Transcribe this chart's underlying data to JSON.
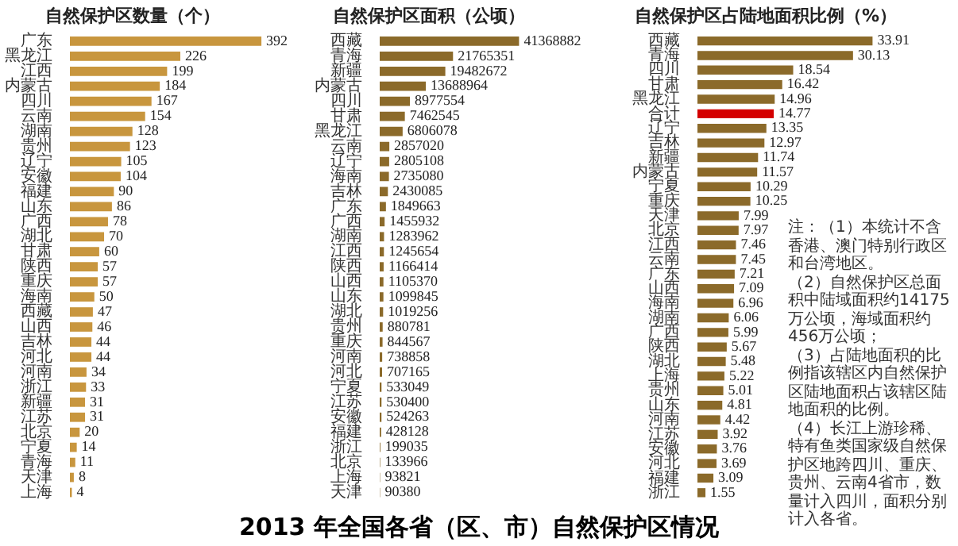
{
  "chart_data": [
    {
      "type": "bar",
      "orientation": "horizontal",
      "title": "自然保护区数量（个）",
      "color": "#c8963e",
      "data_labels": true,
      "legend": false,
      "annotations": [
        "2013 年全国各省（区、市）自然保护区情况"
      ],
      "categories": [
        "广东",
        "黑龙江",
        "江西",
        "内蒙古",
        "四川",
        "云南",
        "湖南",
        "贵州",
        "辽宁",
        "安徽",
        "福建",
        "山东",
        "广西",
        "湖北",
        "甘肃",
        "陕西",
        "重庆",
        "海南",
        "西藏",
        "山西",
        "吉林",
        "河北",
        "河南",
        "浙江",
        "新疆",
        "江苏",
        "北京",
        "宁夏",
        "青海",
        "天津",
        "上海"
      ],
      "values": [
        392,
        226,
        199,
        184,
        167,
        154,
        128,
        123,
        105,
        104,
        90,
        86,
        78,
        70,
        60,
        57,
        57,
        50,
        47,
        46,
        44,
        44,
        34,
        33,
        31,
        31,
        20,
        14,
        11,
        8,
        4
      ]
    },
    {
      "type": "bar",
      "orientation": "horizontal",
      "title": "自然保护区面积（公顷）",
      "color": "#8b6a2a",
      "data_labels": true,
      "legend": false,
      "categories": [
        "西藏",
        "青海",
        "新疆",
        "内蒙古",
        "四川",
        "甘肃",
        "黑龙江",
        "云南",
        "辽宁",
        "海南",
        "吉林",
        "广东",
        "广西",
        "湖南",
        "江西",
        "陕西",
        "山西",
        "山东",
        "湖北",
        "贵州",
        "重庆",
        "河南",
        "河北",
        "宁夏",
        "江苏",
        "安徽",
        "福建",
        "浙江",
        "北京",
        "上海",
        "天津"
      ],
      "values": [
        41368882,
        21765351,
        19482672,
        13688964,
        8977554,
        7462545,
        6806078,
        2857020,
        2805108,
        2735080,
        2430085,
        1849663,
        1455932,
        1283962,
        1245654,
        1166414,
        1105370,
        1099845,
        1019256,
        880781,
        844567,
        738858,
        707165,
        533049,
        530400,
        524263,
        428128,
        199035,
        133966,
        93821,
        90380
      ]
    },
    {
      "type": "bar",
      "orientation": "horizontal",
      "title": "自然保护区占陆地面积比例（%）",
      "data_labels": true,
      "legend": false,
      "annotations": [
        "注：（1）本统计不含香港、澳门特别行政区和台湾地区。",
        "（2）自然保护区总面积中陆域面积约14175万公顷，海域面积约456万公顷；",
        "（3）占陆地面积的比例指该辖区内自然保护区陆地面积占该辖区陆地面积的比例。",
        "（4）长江上游珍稀、特有鱼类国家级自然保护区地跨四川、重庆、贵州、云南4省市，数量计入四川，面积分别计入各省。"
      ],
      "categories": [
        "西藏",
        "青海",
        "四川",
        "甘肃",
        "黑龙江",
        "合计",
        "辽宁",
        "吉林",
        "新疆",
        "内蒙古",
        "宁夏",
        "重庆",
        "天津",
        "北京",
        "江西",
        "云南",
        "广东",
        "山西",
        "海南",
        "湖南",
        "广西",
        "陕西",
        "湖北",
        "上海",
        "贵州",
        "山东",
        "河南",
        "江苏",
        "安徽",
        "河北",
        "福建",
        "浙江"
      ],
      "values": [
        33.91,
        30.13,
        18.54,
        16.42,
        14.96,
        14.77,
        13.35,
        12.97,
        11.74,
        11.57,
        10.29,
        10.25,
        7.99,
        7.97,
        7.46,
        7.45,
        7.21,
        7.09,
        6.96,
        6.06,
        5.99,
        5.67,
        5.48,
        5.22,
        5.01,
        4.81,
        4.42,
        3.92,
        3.76,
        3.69,
        3.09,
        1.55
      ],
      "colors": [
        "#8b6a2a",
        "#8b6a2a",
        "#8b6a2a",
        "#8b6a2a",
        "#8b6a2a",
        "#d40000",
        "#8b6a2a",
        "#8b6a2a",
        "#8b6a2a",
        "#8b6a2a",
        "#8b6a2a",
        "#8b6a2a",
        "#8b6a2a",
        "#8b6a2a",
        "#8b6a2a",
        "#8b6a2a",
        "#8b6a2a",
        "#8b6a2a",
        "#8b6a2a",
        "#8b6a2a",
        "#8b6a2a",
        "#8b6a2a",
        "#8b6a2a",
        "#8b6a2a",
        "#8b6a2a",
        "#8b6a2a",
        "#8b6a2a",
        "#8b6a2a",
        "#8b6a2a",
        "#8b6a2a",
        "#8b6a2a",
        "#8b6a2a"
      ]
    }
  ]
}
